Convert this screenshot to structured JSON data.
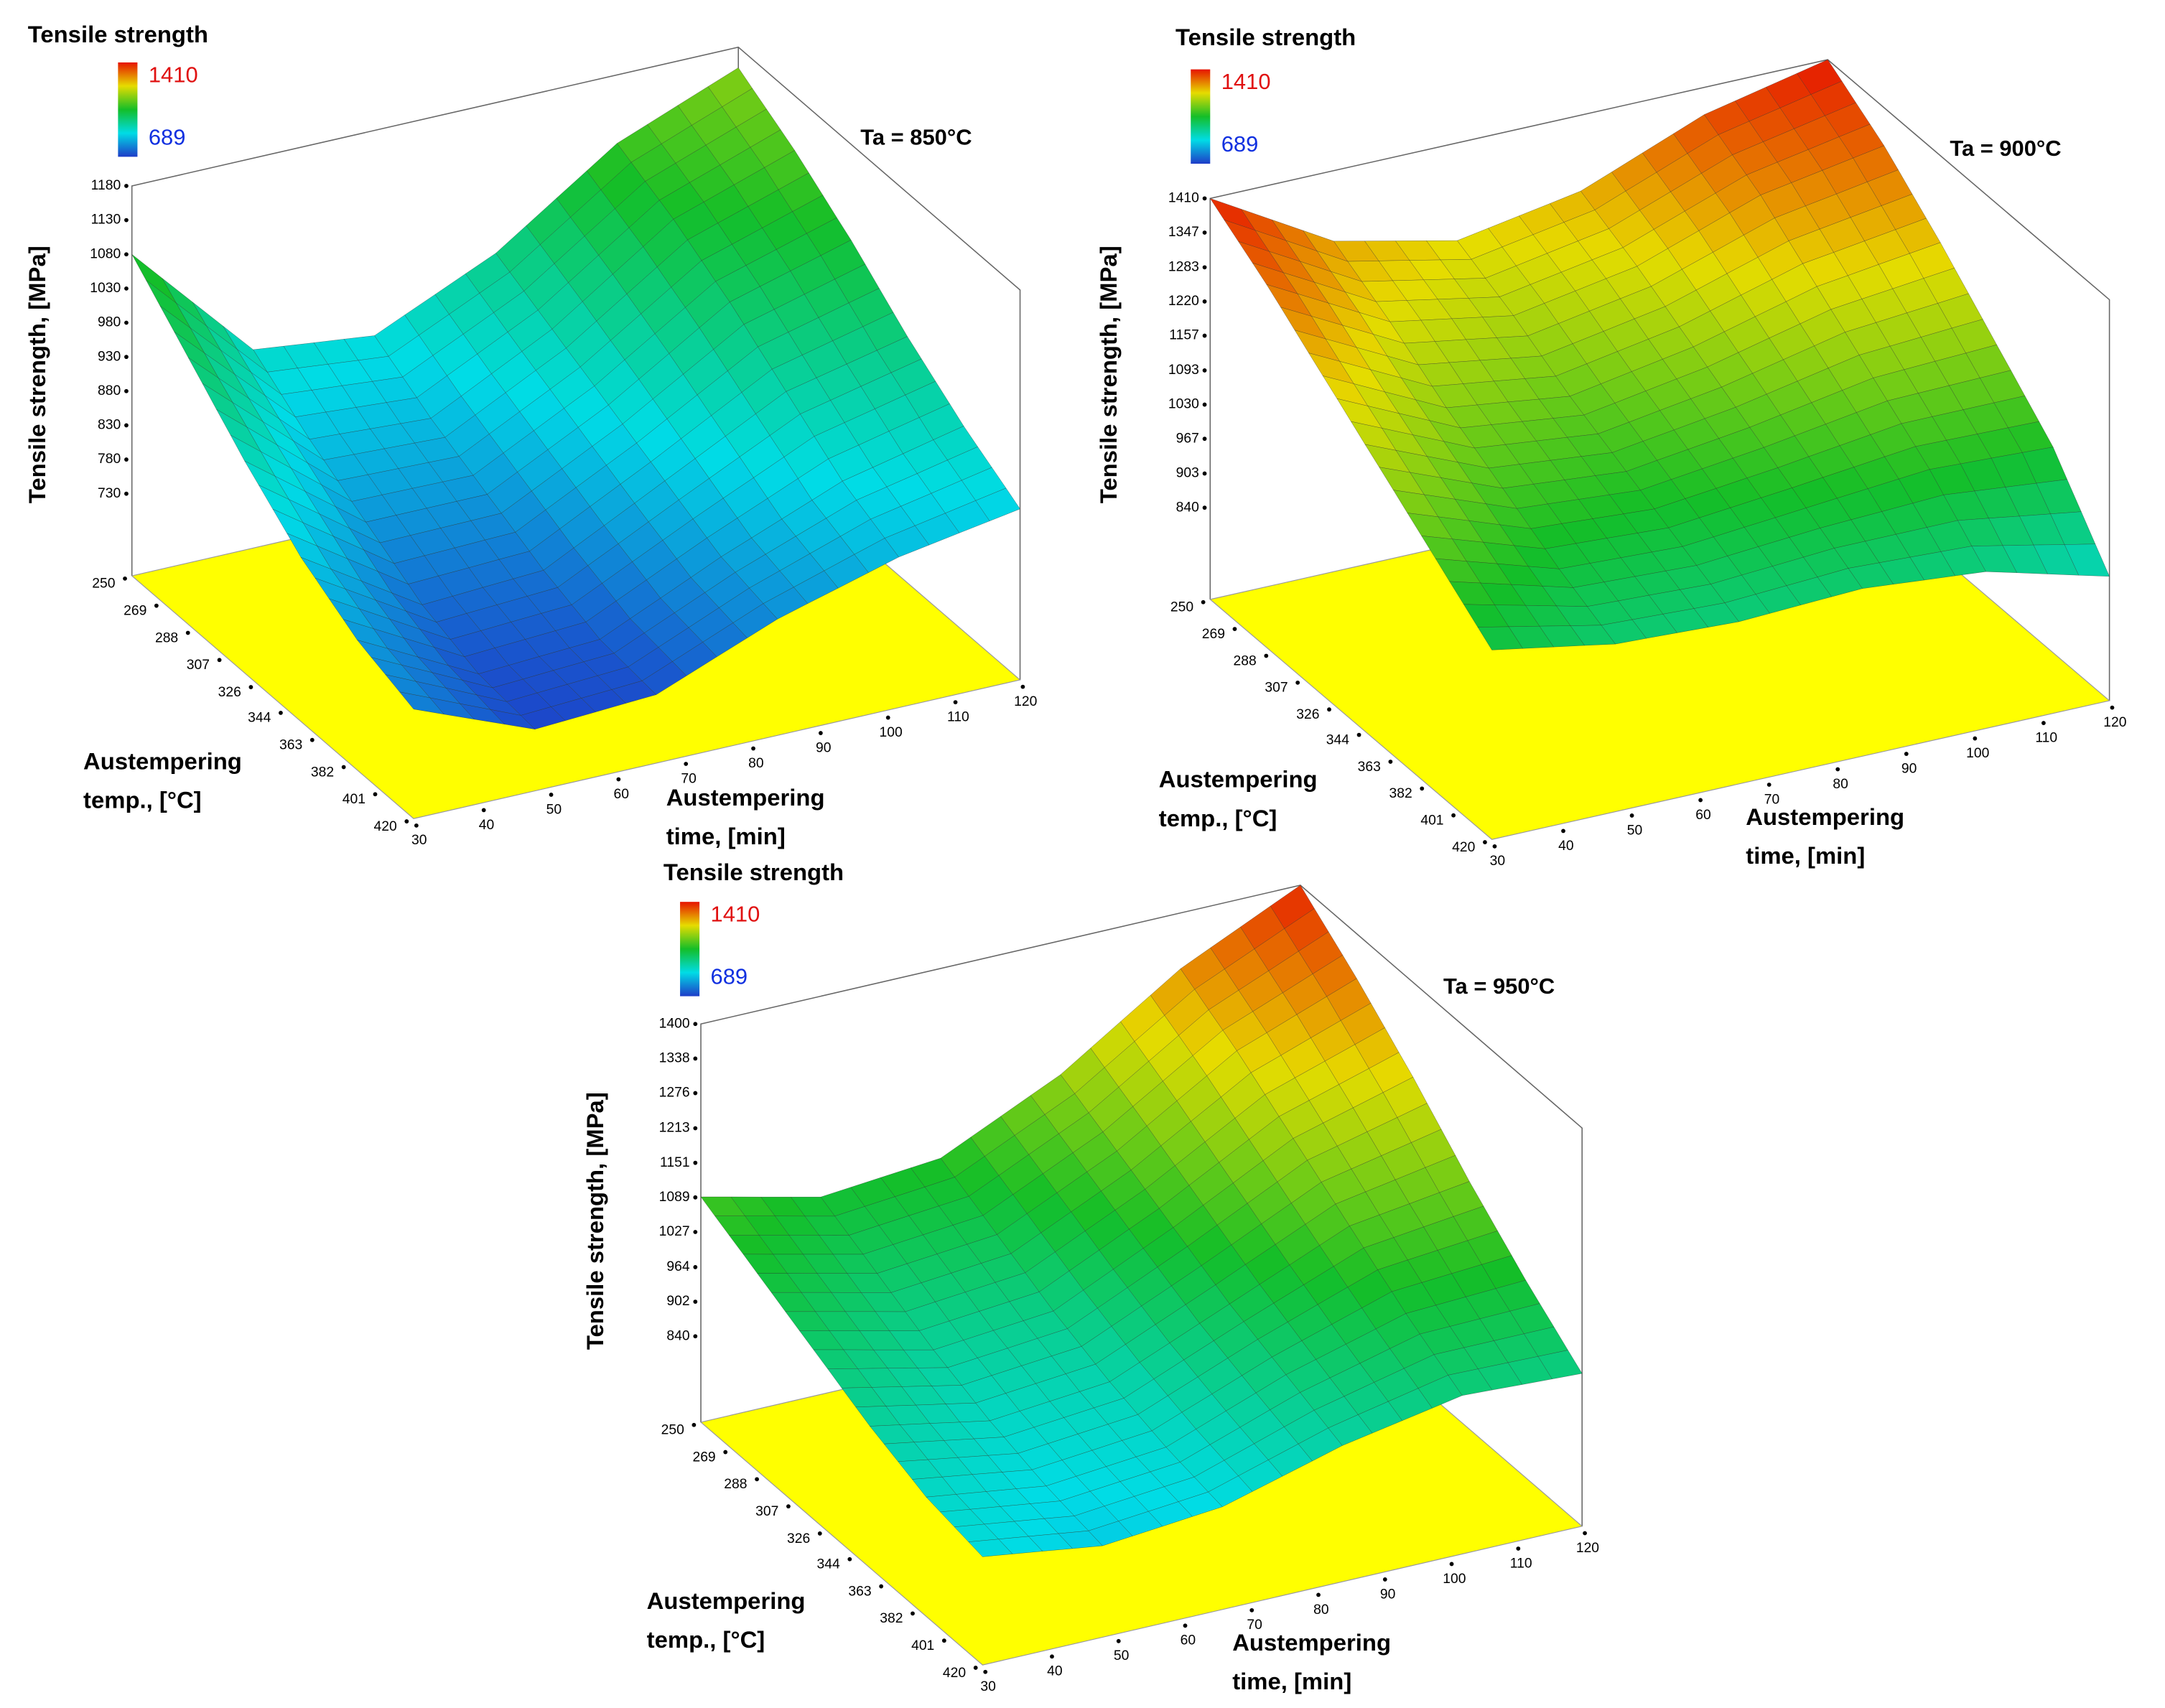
{
  "chart_data": [
    {
      "type": "surface",
      "title": "Ta = 850°C",
      "zlabel": "Tensile strength, [MPa]",
      "ylabel": [
        "Austempering",
        "temp., [°C]"
      ],
      "xlabel": [
        "Austempering",
        "time, [min]"
      ],
      "colorbar": {
        "title": "Tensile strength",
        "max": 1410,
        "min": 689
      },
      "x": [
        30,
        48,
        66,
        84,
        102,
        120
      ],
      "y": [
        250,
        284,
        318,
        352,
        386,
        420
      ],
      "z": [
        [
          1080,
          900,
          880,
          960,
          1080,
          1150
        ],
        [
          1000,
          840,
          830,
          920,
          1040,
          1100
        ],
        [
          920,
          790,
          790,
          880,
          990,
          1040
        ],
        [
          850,
          740,
          750,
          840,
          930,
          970
        ],
        [
          800,
          710,
          720,
          800,
          870,
          910
        ],
        [
          770,
          700,
          710,
          780,
          830,
          860
        ]
      ],
      "xlim": [
        30,
        120
      ],
      "xticks": [
        30,
        40,
        50,
        60,
        70,
        80,
        90,
        100,
        110,
        120
      ],
      "ylim": [
        250,
        420
      ],
      "yticks": [
        250,
        269,
        288,
        307,
        326,
        344,
        363,
        382,
        401,
        420
      ],
      "zlim": [
        610,
        1180
      ],
      "zticks": [
        730,
        780,
        830,
        880,
        930,
        980,
        1030,
        1080,
        1130,
        1180
      ]
    },
    {
      "type": "surface",
      "title": "Ta = 900°C",
      "zlabel": "Tensile strength, [MPa]",
      "ylabel": [
        "Austempering",
        "temp., [°C]"
      ],
      "xlabel": [
        "Austempering",
        "time, [min]"
      ],
      "colorbar": {
        "title": "Tensile strength",
        "max": 1410,
        "min": 689
      },
      "x": [
        30,
        48,
        66,
        84,
        102,
        120
      ],
      "y": [
        250,
        284,
        318,
        352,
        386,
        420
      ],
      "z": [
        [
          1410,
          1280,
          1230,
          1270,
          1360,
          1410
        ],
        [
          1340,
          1220,
          1180,
          1220,
          1300,
          1340
        ],
        [
          1260,
          1150,
          1120,
          1160,
          1220,
          1250
        ],
        [
          1180,
          1090,
          1070,
          1100,
          1140,
          1150
        ],
        [
          1100,
          1030,
          1020,
          1040,
          1060,
          1050
        ],
        [
          1020,
          980,
          970,
          980,
          960,
          900
        ]
      ],
      "xlim": [
        30,
        120
      ],
      "xticks": [
        30,
        40,
        50,
        60,
        70,
        80,
        90,
        100,
        110,
        120
      ],
      "ylim": [
        250,
        420
      ],
      "yticks": [
        250,
        269,
        288,
        307,
        326,
        344,
        363,
        382,
        401,
        420
      ],
      "zlim": [
        671,
        1410
      ],
      "zticks": [
        840,
        903,
        967,
        1030,
        1093,
        1157,
        1220,
        1283,
        1347,
        1410
      ]
    },
    {
      "type": "surface",
      "title": "Ta = 950°C",
      "zlabel": "Tensile strength, [MPa]",
      "ylabel": [
        "Austempering",
        "temp., [°C]"
      ],
      "xlabel": [
        "Austempering",
        "time, [min]"
      ],
      "colorbar": {
        "title": "Tensile strength",
        "max": 1410,
        "min": 689
      },
      "x": [
        30,
        48,
        66,
        84,
        102,
        120
      ],
      "y": [
        250,
        284,
        318,
        352,
        386,
        420
      ],
      "z": [
        [
          1090,
          1040,
          1060,
          1160,
          1300,
          1400
        ],
        [
          1040,
          990,
          1010,
          1110,
          1240,
          1320
        ],
        [
          990,
          940,
          960,
          1060,
          1170,
          1230
        ],
        [
          940,
          900,
          920,
          1010,
          1100,
          1130
        ],
        [
          900,
          870,
          890,
          970,
          1030,
          1040
        ],
        [
          880,
          850,
          870,
          930,
          970,
          960
        ]
      ],
      "xlim": [
        30,
        120
      ],
      "xticks": [
        30,
        40,
        50,
        60,
        70,
        80,
        90,
        100,
        110,
        120
      ],
      "ylim": [
        250,
        420
      ],
      "yticks": [
        250,
        269,
        288,
        307,
        326,
        344,
        363,
        382,
        401,
        420
      ],
      "zlim": [
        686,
        1400
      ],
      "zticks": [
        840,
        902,
        964,
        1027,
        1089,
        1151,
        1213,
        1276,
        1338,
        1400
      ]
    }
  ]
}
